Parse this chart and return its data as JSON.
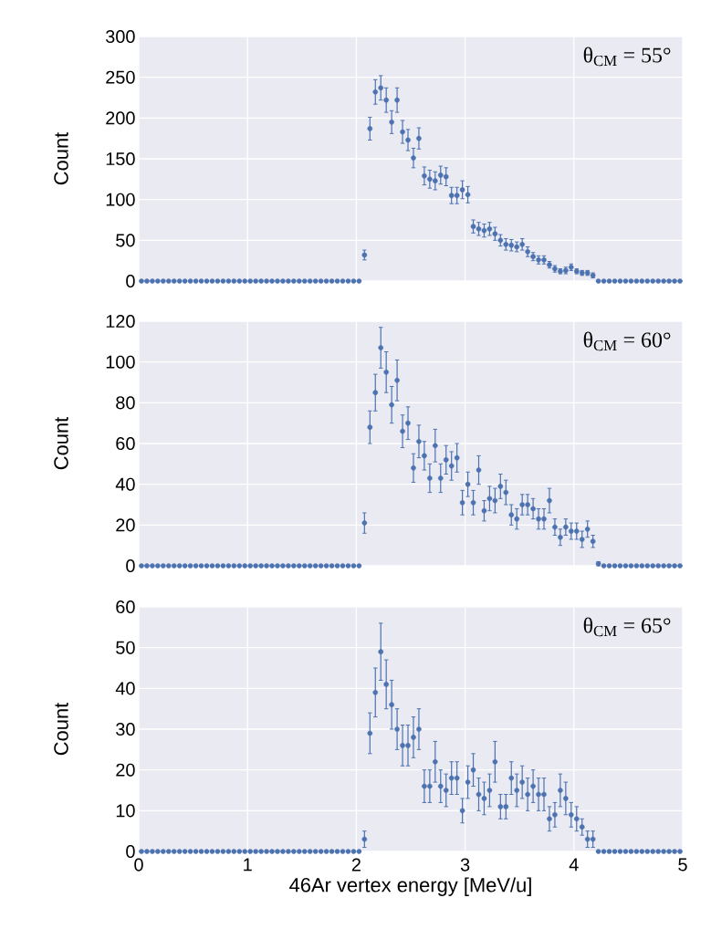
{
  "chart_data": [
    {
      "type": "scatter",
      "color": "#4c72b0",
      "marker": "circle",
      "grid": true,
      "tick_labels": "y",
      "ylabel": "Count",
      "annotations": [
        "θ$_{CM}$ = 55°"
      ],
      "xlim": [
        0,
        5
      ],
      "xticks": [
        0,
        1,
        2,
        3,
        4,
        5
      ],
      "ylim": [
        0,
        300
      ],
      "yticks": [
        0,
        50,
        100,
        150,
        200,
        250,
        300
      ],
      "x": [
        0.025,
        0.075,
        0.125,
        0.175,
        0.225,
        0.275,
        0.325,
        0.375,
        0.425,
        0.475,
        0.525,
        0.575,
        0.625,
        0.675,
        0.725,
        0.775,
        0.825,
        0.875,
        0.925,
        0.975,
        1.025,
        1.075,
        1.125,
        1.175,
        1.225,
        1.275,
        1.325,
        1.375,
        1.425,
        1.475,
        1.525,
        1.575,
        1.625,
        1.675,
        1.725,
        1.775,
        1.825,
        1.875,
        1.925,
        1.975,
        2.025,
        2.075,
        2.125,
        2.175,
        2.225,
        2.275,
        2.325,
        2.375,
        2.425,
        2.475,
        2.525,
        2.575,
        2.625,
        2.675,
        2.725,
        2.775,
        2.825,
        2.875,
        2.925,
        2.975,
        3.025,
        3.075,
        3.125,
        3.175,
        3.225,
        3.275,
        3.325,
        3.375,
        3.425,
        3.475,
        3.525,
        3.575,
        3.625,
        3.675,
        3.725,
        3.775,
        3.825,
        3.875,
        3.925,
        3.975,
        4.025,
        4.075,
        4.125,
        4.175,
        4.225,
        4.275,
        4.325,
        4.375,
        4.425,
        4.475,
        4.525,
        4.575,
        4.625,
        4.675,
        4.725,
        4.775,
        4.825,
        4.875,
        4.925,
        4.975
      ],
      "values": [
        0,
        0,
        0,
        0,
        0,
        0,
        0,
        0,
        0,
        0,
        0,
        0,
        0,
        0,
        0,
        0,
        0,
        0,
        0,
        0,
        0,
        0,
        0,
        0,
        0,
        0,
        0,
        0,
        0,
        0,
        0,
        0,
        0,
        0,
        0,
        0,
        0,
        0,
        0,
        0,
        0,
        32,
        187,
        232,
        237,
        222,
        195,
        222,
        183,
        173,
        151,
        175,
        129,
        125,
        123,
        130,
        128,
        105,
        105,
        112,
        106,
        67,
        64,
        62,
        64,
        58,
        50,
        45,
        44,
        42,
        45,
        36,
        30,
        26,
        26,
        20,
        15,
        12,
        13,
        17,
        12,
        10,
        10,
        7,
        0,
        0,
        0,
        0,
        0,
        0,
        0,
        0,
        0,
        0,
        0,
        0,
        0,
        0,
        0,
        0
      ],
      "errors": [
        null,
        null,
        null,
        null,
        null,
        null,
        null,
        null,
        null,
        null,
        null,
        null,
        null,
        null,
        null,
        null,
        null,
        null,
        null,
        null,
        null,
        null,
        null,
        null,
        null,
        null,
        null,
        null,
        null,
        null,
        null,
        null,
        null,
        null,
        null,
        null,
        null,
        null,
        null,
        null,
        null,
        6,
        14,
        15,
        15,
        15,
        14,
        15,
        14,
        13,
        12,
        13,
        11,
        11,
        11,
        11,
        11,
        10,
        10,
        11,
        10,
        8,
        8,
        8,
        8,
        8,
        7,
        7,
        7,
        6,
        7,
        6,
        5,
        5,
        5,
        4,
        4,
        3,
        4,
        4,
        3,
        3,
        3,
        3,
        null,
        null,
        null,
        null,
        null,
        null,
        null,
        null,
        null,
        null,
        null,
        null,
        null,
        null,
        null,
        null
      ]
    },
    {
      "type": "scatter",
      "color": "#4c72b0",
      "marker": "circle",
      "grid": true,
      "tick_labels": "y",
      "ylabel": "Count",
      "annotations": [
        "θ$_{CM}$ = 60°"
      ],
      "xlim": [
        0,
        5
      ],
      "xticks": [
        0,
        1,
        2,
        3,
        4,
        5
      ],
      "ylim": [
        0,
        120
      ],
      "yticks": [
        0,
        20,
        40,
        60,
        80,
        100,
        120
      ],
      "x": [
        0.025,
        0.075,
        0.125,
        0.175,
        0.225,
        0.275,
        0.325,
        0.375,
        0.425,
        0.475,
        0.525,
        0.575,
        0.625,
        0.675,
        0.725,
        0.775,
        0.825,
        0.875,
        0.925,
        0.975,
        1.025,
        1.075,
        1.125,
        1.175,
        1.225,
        1.275,
        1.325,
        1.375,
        1.425,
        1.475,
        1.525,
        1.575,
        1.625,
        1.675,
        1.725,
        1.775,
        1.825,
        1.875,
        1.925,
        1.975,
        2.025,
        2.075,
        2.125,
        2.175,
        2.225,
        2.275,
        2.325,
        2.375,
        2.425,
        2.475,
        2.525,
        2.575,
        2.625,
        2.675,
        2.725,
        2.775,
        2.825,
        2.875,
        2.925,
        2.975,
        3.025,
        3.075,
        3.125,
        3.175,
        3.225,
        3.275,
        3.325,
        3.375,
        3.425,
        3.475,
        3.525,
        3.575,
        3.625,
        3.675,
        3.725,
        3.775,
        3.825,
        3.875,
        3.925,
        3.975,
        4.025,
        4.075,
        4.125,
        4.175,
        4.225,
        4.275,
        4.325,
        4.375,
        4.425,
        4.475,
        4.525,
        4.575,
        4.625,
        4.675,
        4.725,
        4.775,
        4.825,
        4.875,
        4.925,
        4.975
      ],
      "values": [
        0,
        0,
        0,
        0,
        0,
        0,
        0,
        0,
        0,
        0,
        0,
        0,
        0,
        0,
        0,
        0,
        0,
        0,
        0,
        0,
        0,
        0,
        0,
        0,
        0,
        0,
        0,
        0,
        0,
        0,
        0,
        0,
        0,
        0,
        0,
        0,
        0,
        0,
        0,
        0,
        0,
        21,
        68,
        85,
        107,
        95,
        79,
        91,
        66,
        70,
        48,
        61,
        54,
        43,
        59,
        43,
        52,
        49,
        53,
        31,
        40,
        31,
        47,
        27,
        33,
        32,
        39,
        36,
        25,
        23,
        30,
        30,
        28,
        23,
        23,
        32,
        19,
        14,
        19,
        17,
        17,
        13,
        18,
        12,
        1,
        0,
        0,
        0,
        0,
        0,
        0,
        0,
        0,
        0,
        0,
        0,
        0,
        0,
        0,
        0
      ],
      "errors": [
        null,
        null,
        null,
        null,
        null,
        null,
        null,
        null,
        null,
        null,
        null,
        null,
        null,
        null,
        null,
        null,
        null,
        null,
        null,
        null,
        null,
        null,
        null,
        null,
        null,
        null,
        null,
        null,
        null,
        null,
        null,
        null,
        null,
        null,
        null,
        null,
        null,
        null,
        null,
        null,
        null,
        5,
        8,
        9,
        10,
        10,
        9,
        10,
        8,
        8,
        7,
        8,
        7,
        7,
        8,
        7,
        7,
        7,
        7,
        6,
        6,
        6,
        7,
        5,
        6,
        6,
        6,
        6,
        5,
        5,
        5,
        5,
        5,
        5,
        5,
        6,
        4,
        4,
        4,
        4,
        4,
        4,
        4,
        3,
        1,
        null,
        null,
        null,
        null,
        null,
        null,
        null,
        null,
        null,
        null,
        null,
        null,
        null,
        null,
        null
      ]
    },
    {
      "type": "scatter",
      "color": "#4c72b0",
      "marker": "circle",
      "grid": true,
      "xlabel": "46Ar vertex energy [MeV/u]",
      "ylabel": "Count",
      "annotations": [
        "θ$_{CM}$ = 65°"
      ],
      "xlim": [
        0,
        5
      ],
      "xticks": [
        0,
        1,
        2,
        3,
        4,
        5
      ],
      "ylim": [
        0,
        60
      ],
      "yticks": [
        0,
        10,
        20,
        30,
        40,
        50,
        60
      ],
      "x": [
        0.025,
        0.075,
        0.125,
        0.175,
        0.225,
        0.275,
        0.325,
        0.375,
        0.425,
        0.475,
        0.525,
        0.575,
        0.625,
        0.675,
        0.725,
        0.775,
        0.825,
        0.875,
        0.925,
        0.975,
        1.025,
        1.075,
        1.125,
        1.175,
        1.225,
        1.275,
        1.325,
        1.375,
        1.425,
        1.475,
        1.525,
        1.575,
        1.625,
        1.675,
        1.725,
        1.775,
        1.825,
        1.875,
        1.925,
        1.975,
        2.025,
        2.075,
        2.125,
        2.175,
        2.225,
        2.275,
        2.325,
        2.375,
        2.425,
        2.475,
        2.525,
        2.575,
        2.625,
        2.675,
        2.725,
        2.775,
        2.825,
        2.875,
        2.925,
        2.975,
        3.025,
        3.075,
        3.125,
        3.175,
        3.225,
        3.275,
        3.325,
        3.375,
        3.425,
        3.475,
        3.525,
        3.575,
        3.625,
        3.675,
        3.725,
        3.775,
        3.825,
        3.875,
        3.925,
        3.975,
        4.025,
        4.075,
        4.125,
        4.175,
        4.225,
        4.275,
        4.325,
        4.375,
        4.425,
        4.475,
        4.525,
        4.575,
        4.625,
        4.675,
        4.725,
        4.775,
        4.825,
        4.875,
        4.925,
        4.975
      ],
      "values": [
        0,
        0,
        0,
        0,
        0,
        0,
        0,
        0,
        0,
        0,
        0,
        0,
        0,
        0,
        0,
        0,
        0,
        0,
        0,
        0,
        0,
        0,
        0,
        0,
        0,
        0,
        0,
        0,
        0,
        0,
        0,
        0,
        0,
        0,
        0,
        0,
        0,
        0,
        0,
        0,
        0,
        3,
        29,
        39,
        49,
        41,
        36,
        30,
        26,
        26,
        28,
        30,
        16,
        16,
        22,
        16,
        15,
        18,
        18,
        10,
        17,
        20,
        14,
        13,
        15,
        22,
        11,
        11,
        18,
        15,
        17,
        14,
        16,
        14,
        14,
        8,
        9,
        15,
        13,
        9,
        8,
        6,
        3,
        3,
        0,
        0,
        0,
        0,
        0,
        0,
        0,
        0,
        0,
        0,
        0,
        0,
        0,
        0,
        0,
        0
      ],
      "errors": [
        null,
        null,
        null,
        null,
        null,
        null,
        null,
        null,
        null,
        null,
        null,
        null,
        null,
        null,
        null,
        null,
        null,
        null,
        null,
        null,
        null,
        null,
        null,
        null,
        null,
        null,
        null,
        null,
        null,
        null,
        null,
        null,
        null,
        null,
        null,
        null,
        null,
        null,
        null,
        null,
        null,
        2,
        5,
        6,
        7,
        6,
        6,
        5,
        5,
        5,
        5,
        5,
        4,
        4,
        5,
        4,
        4,
        4,
        4,
        3,
        4,
        4,
        4,
        4,
        4,
        5,
        3,
        3,
        4,
        4,
        4,
        4,
        4,
        4,
        4,
        3,
        3,
        4,
        4,
        3,
        3,
        2,
        2,
        2,
        null,
        null,
        null,
        null,
        null,
        null,
        null,
        null,
        null,
        null,
        null,
        null,
        null,
        null,
        null,
        null
      ]
    }
  ]
}
